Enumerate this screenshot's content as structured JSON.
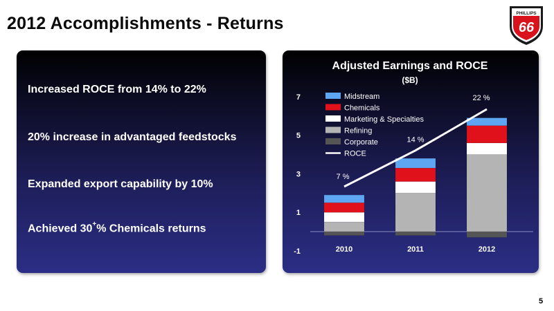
{
  "slide": {
    "title": "2012 Accomplishments - Returns",
    "page_number": "5"
  },
  "logo": {
    "top_text": "PHILLIPS",
    "number": "66",
    "colors": {
      "shield": "#d8131b",
      "outline": "#1a1a1a",
      "text": "#ffffff"
    }
  },
  "bullets": [
    {
      "text": "Increased ROCE from 14% to 22%"
    },
    {
      "text": "20% increase in advantaged feedstocks"
    },
    {
      "text": "Expanded export capability by 10%"
    },
    {
      "text_before": "Achieved 30",
      "sup": "+",
      "text_after": "% Chemicals returns"
    }
  ],
  "chart_data": {
    "type": "bar",
    "stacked": true,
    "title": "Adjusted Earnings and ROCE",
    "subtitle": "($B)",
    "categories": [
      "2010",
      "2011",
      "2012"
    ],
    "ylim": [
      -1,
      7.5
    ],
    "yticks": [
      "-1",
      "1",
      "3",
      "5",
      "7"
    ],
    "legend_position": "top-left",
    "series": [
      {
        "name": "Corporate",
        "color": "#555555",
        "values": [
          -0.2,
          -0.2,
          -0.3
        ]
      },
      {
        "name": "Refining",
        "color": "#b4b4b4",
        "values": [
          0.5,
          2.0,
          4.0
        ]
      },
      {
        "name": "Marketing & Specialties",
        "color": "#ffffff",
        "values": [
          0.5,
          0.6,
          0.6
        ]
      },
      {
        "name": "Chemicals",
        "color": "#e0111b",
        "values": [
          0.5,
          0.7,
          0.9
        ]
      },
      {
        "name": "Midstream",
        "color": "#5ea6f2",
        "values": [
          0.4,
          0.5,
          0.4
        ]
      }
    ],
    "line_series": {
      "name": "ROCE",
      "color": "#ffffff",
      "values": [
        7,
        14,
        22
      ],
      "labels": [
        "7 %",
        "14 %",
        "22 %"
      ]
    },
    "legend_order": [
      "Midstream",
      "Chemicals",
      "Marketing & Specialties",
      "Refining",
      "Corporate",
      "ROCE"
    ]
  }
}
